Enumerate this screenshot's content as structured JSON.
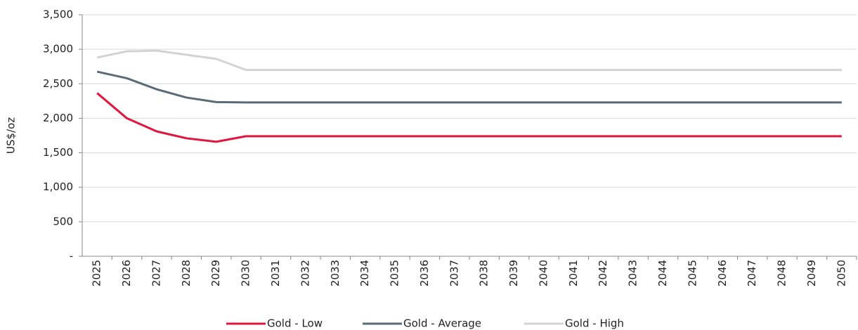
{
  "chart_data": {
    "type": "line",
    "y_label": "US$/oz",
    "categories": [
      "2025",
      "2026",
      "2027",
      "2028",
      "2029",
      "2030",
      "2031",
      "2032",
      "2033",
      "2034",
      "2035",
      "2036",
      "2037",
      "2038",
      "2039",
      "2040",
      "2041",
      "2042",
      "2043",
      "2044",
      "2045",
      "2046",
      "2047",
      "2048",
      "2049",
      "2050"
    ],
    "series": [
      {
        "name": "Gold - Low",
        "color": "#e0163d",
        "values": [
          2365,
          2000,
          1810,
          1710,
          1660,
          1740,
          1740,
          1740,
          1740,
          1740,
          1740,
          1740,
          1740,
          1740,
          1740,
          1740,
          1740,
          1740,
          1740,
          1740,
          1740,
          1740,
          1740,
          1740,
          1740,
          1740
        ]
      },
      {
        "name": "Gold - Average",
        "color": "#5a6b78",
        "values": [
          2675,
          2580,
          2420,
          2300,
          2235,
          2230,
          2230,
          2230,
          2230,
          2230,
          2230,
          2230,
          2230,
          2230,
          2230,
          2230,
          2230,
          2230,
          2230,
          2230,
          2230,
          2230,
          2230,
          2230,
          2230,
          2230
        ]
      },
      {
        "name": "Gold - High",
        "color": "#d3d3d3",
        "values": [
          2880,
          2970,
          2980,
          2920,
          2860,
          2700,
          2700,
          2700,
          2700,
          2700,
          2700,
          2700,
          2700,
          2700,
          2700,
          2700,
          2700,
          2700,
          2700,
          2700,
          2700,
          2700,
          2700,
          2700,
          2700,
          2700
        ]
      }
    ],
    "ylim": [
      0,
      3500
    ],
    "yticks": [
      {
        "value": 0,
        "label": "-"
      },
      500,
      {
        "value": 1000,
        "label": "1,000"
      },
      {
        "value": 1500,
        "label": "1,500"
      },
      {
        "value": 2000,
        "label": "2,000"
      },
      {
        "value": 2500,
        "label": "2,500"
      },
      {
        "value": 3000,
        "label": "3,000"
      },
      {
        "value": 3500,
        "label": "3,500"
      }
    ],
    "grid": true,
    "legend": "bottom"
  }
}
